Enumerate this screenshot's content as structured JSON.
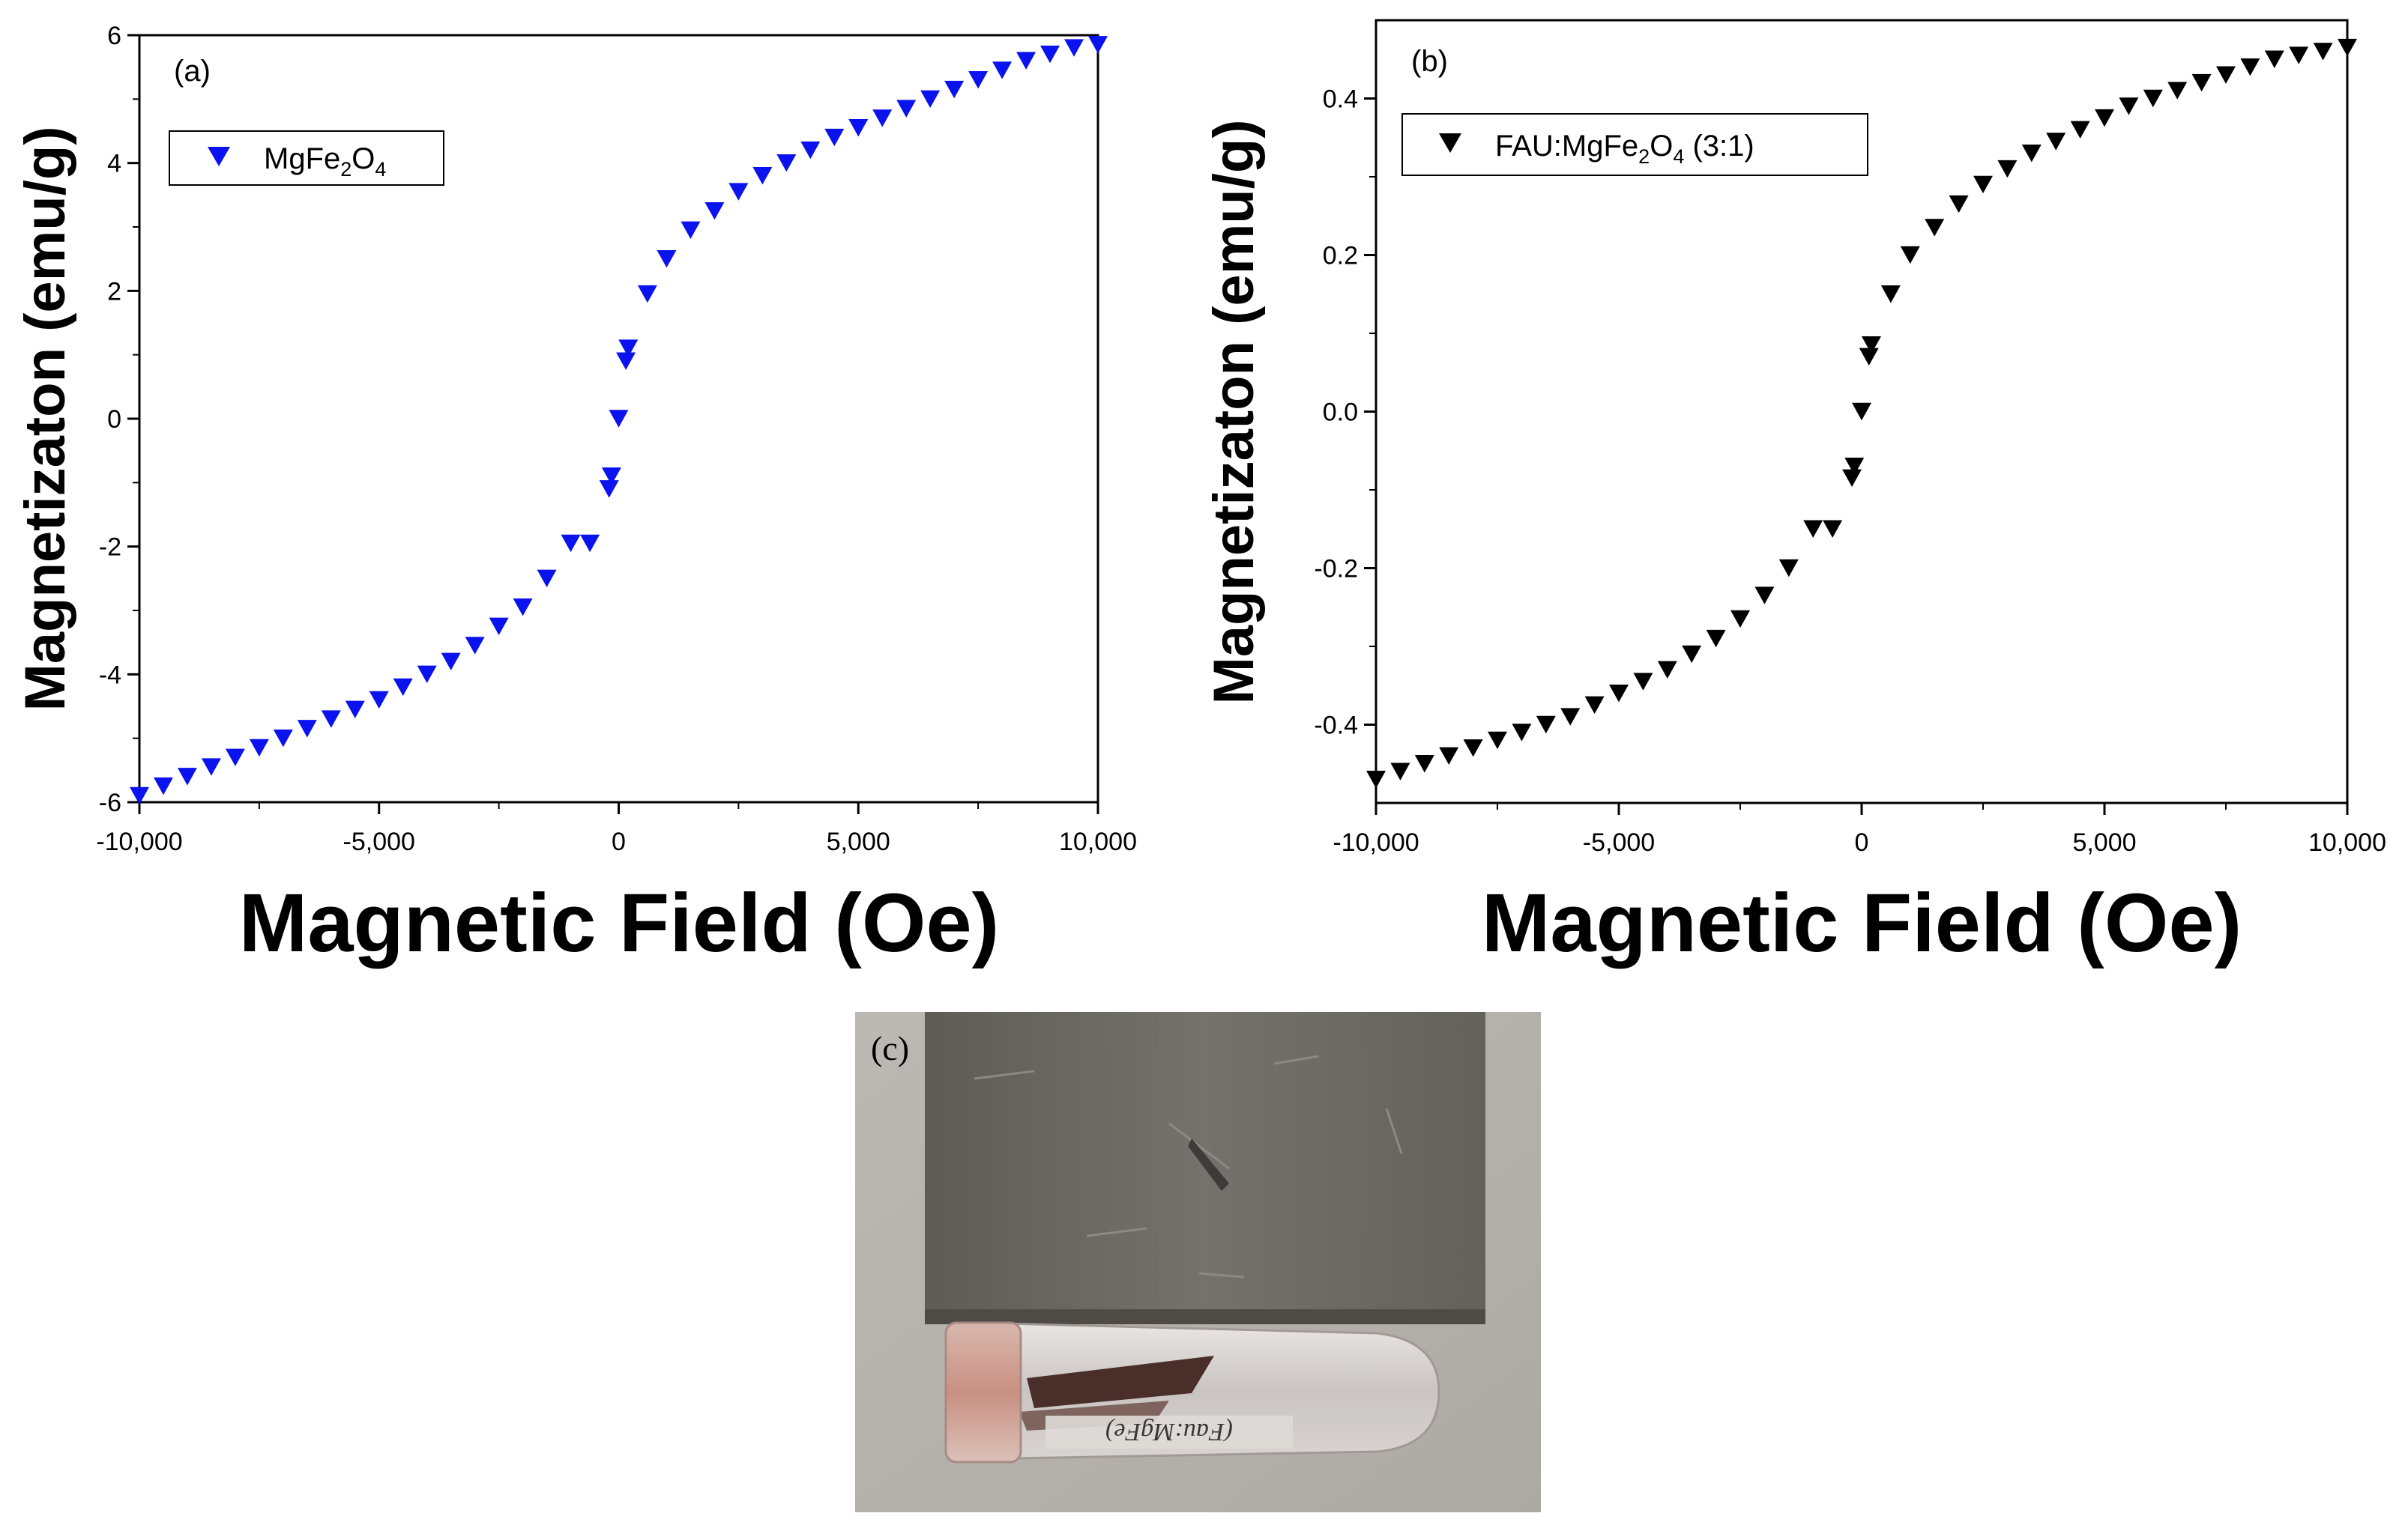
{
  "chart_data": [
    {
      "panel": "(a)",
      "type": "scatter",
      "marker": "triangle-down",
      "color": "#0a12ee",
      "title": "",
      "xlabel": "Magnetic Field (Oe)",
      "ylabel": "Magnetizaton (emu/g)",
      "xlim": [
        -10000,
        10000
      ],
      "ylim": [
        -6,
        6
      ],
      "xticks": [
        "-10,000",
        "-5,000",
        "0",
        "5,000",
        "10,000"
      ],
      "yticks": [
        "-6",
        "-4",
        "-2",
        "0",
        "2",
        "4",
        "6"
      ],
      "legend": {
        "label_main": "MgFe",
        "sub1": "2",
        "mid": "O",
        "sub2": "4",
        "tail": "",
        "placement": "top-left"
      },
      "series": [
        {
          "name": "MgFe2O4",
          "x": [
            -10000,
            -9500,
            -9000,
            -8500,
            -8000,
            -7500,
            -7000,
            -6500,
            -6000,
            -5500,
            -5000,
            -4500,
            -4000,
            -3500,
            -3000,
            -2500,
            -2000,
            -1500,
            -1000,
            -600,
            -200,
            -150,
            0,
            150,
            200,
            600,
            1000,
            1500,
            2000,
            2500,
            3000,
            3500,
            4000,
            4500,
            5000,
            5500,
            6000,
            6500,
            7000,
            7500,
            8000,
            8500,
            9000,
            9500,
            10000
          ],
          "y": [
            -5.9,
            -5.75,
            -5.6,
            -5.45,
            -5.3,
            -5.15,
            -5.0,
            -4.85,
            -4.7,
            -4.55,
            -4.4,
            -4.2,
            -4.0,
            -3.8,
            -3.55,
            -3.25,
            -2.95,
            -2.5,
            -1.95,
            -1.95,
            -1.1,
            -0.9,
            0.0,
            0.9,
            1.1,
            1.95,
            2.5,
            2.95,
            3.25,
            3.55,
            3.8,
            4.0,
            4.2,
            4.4,
            4.55,
            4.7,
            4.85,
            5.0,
            5.15,
            5.3,
            5.45,
            5.6,
            5.7,
            5.8,
            5.85
          ]
        }
      ]
    },
    {
      "panel": "(b)",
      "type": "scatter",
      "marker": "triangle-down",
      "color": "#000000",
      "title": "",
      "xlabel": "Magnetic Field (Oe)",
      "ylabel": "Magnetizaton (emu/g)",
      "xlim": [
        -10000,
        10000
      ],
      "ylim": [
        -0.5,
        0.5
      ],
      "xticks": [
        "-10,000",
        "-5,000",
        "0",
        "5,000",
        "10,000"
      ],
      "yticks": [
        "-0.4",
        "-0.2",
        "0.0",
        "0.2",
        "0.4"
      ],
      "legend": {
        "label_main": "FAU:MgFe",
        "sub1": "2",
        "mid": "O",
        "sub2": "4",
        "tail": " (3:1)",
        "placement": "top-left"
      },
      "series": [
        {
          "name": "FAU:MgFe2O4 (3:1)",
          "x": [
            -10000,
            -9500,
            -9000,
            -8500,
            -8000,
            -7500,
            -7000,
            -6500,
            -6000,
            -5500,
            -5000,
            -4500,
            -4000,
            -3500,
            -3000,
            -2500,
            -2000,
            -1500,
            -1000,
            -600,
            -200,
            -150,
            0,
            150,
            200,
            600,
            1000,
            1500,
            2000,
            2500,
            3000,
            3500,
            4000,
            4500,
            5000,
            5500,
            6000,
            6500,
            7000,
            7500,
            8000,
            8500,
            9000,
            9500,
            10000
          ],
          "y": [
            -0.47,
            -0.46,
            -0.45,
            -0.44,
            -0.43,
            -0.42,
            -0.41,
            -0.4,
            -0.39,
            -0.375,
            -0.36,
            -0.345,
            -0.33,
            -0.31,
            -0.29,
            -0.265,
            -0.235,
            -0.2,
            -0.15,
            -0.15,
            -0.085,
            -0.07,
            0.0,
            0.07,
            0.085,
            0.15,
            0.2,
            0.235,
            0.265,
            0.29,
            0.31,
            0.33,
            0.345,
            0.36,
            0.375,
            0.39,
            0.4,
            0.41,
            0.42,
            0.43,
            0.44,
            0.45,
            0.455,
            0.46,
            0.465
          ]
        }
      ]
    }
  ],
  "photo": {
    "label": "(c)",
    "vial_writing": "(Fau:MgFe)",
    "colors": {
      "background": "#b6b2ad",
      "magnet": "#6b6762",
      "vial": "#d6d3d1",
      "contents": "#4a2e2a"
    }
  }
}
